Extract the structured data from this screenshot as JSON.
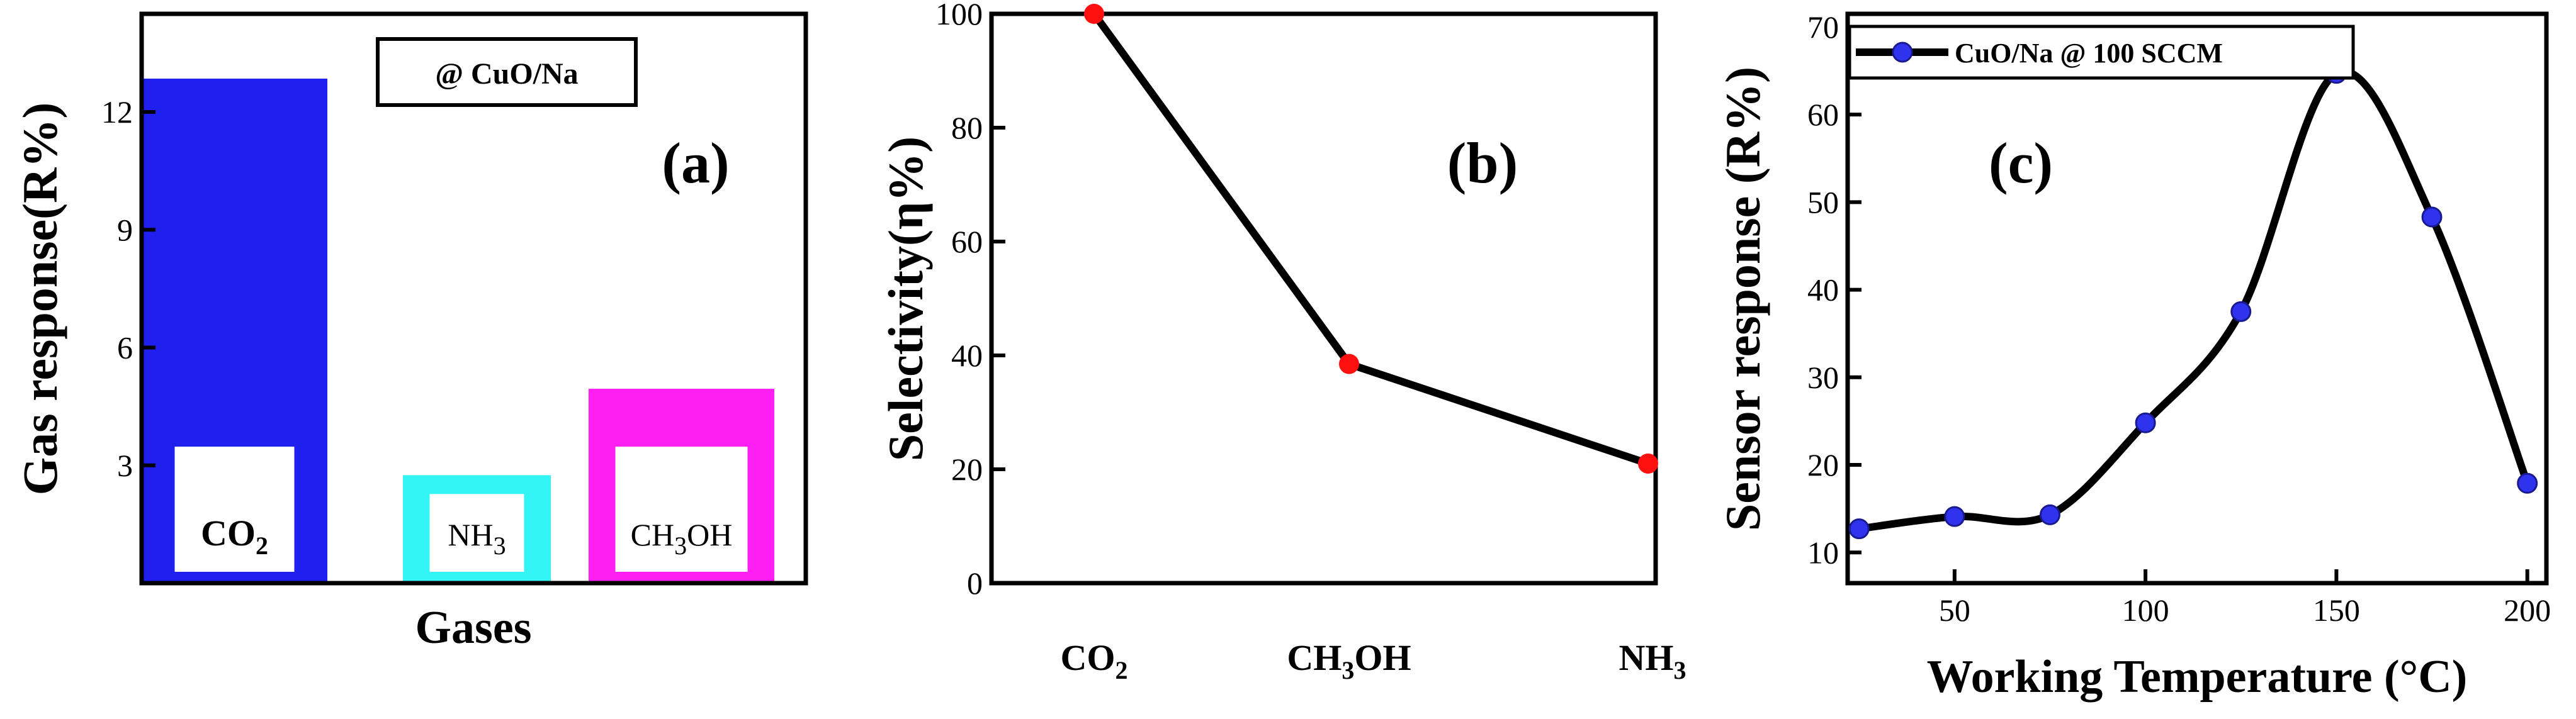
{
  "chart_data": [
    {
      "type": "bar",
      "panel_label": "(a)",
      "annotation": "@ CuO/Na",
      "xlabel": "Gases",
      "ylabel": "Gas response(R%)",
      "ylim": [
        0,
        14.5
      ],
      "yticks": [
        3,
        6,
        9,
        12
      ],
      "categories": [
        "CO2",
        "NH3",
        "CH3OH"
      ],
      "category_labels": [
        {
          "main": "CO",
          "sub": "2",
          "tail": ""
        },
        {
          "main": "NH",
          "sub": "3",
          "tail": ""
        },
        {
          "main": "CH",
          "sub": "3",
          "tail": "OH"
        }
      ],
      "values": [
        12.85,
        2.75,
        4.95
      ],
      "colors": [
        "#1f1ff0",
        "#33f5f5",
        "#ff1ff2"
      ]
    },
    {
      "type": "line",
      "panel_label": "(b)",
      "ylabel": "Selectivity(η%)",
      "ylim": [
        0,
        100
      ],
      "yticks": [
        0,
        20,
        40,
        60,
        80,
        100
      ],
      "categories": [
        "CO2",
        "CH3OH",
        "NH3"
      ],
      "category_labels": [
        {
          "main": "CO",
          "sub": "2",
          "tail": ""
        },
        {
          "main": "CH",
          "sub": "3",
          "tail": "OH"
        },
        {
          "main": "NH",
          "sub": "3",
          "tail": ""
        }
      ],
      "values": [
        100,
        38.5,
        21
      ],
      "line_color": "#000000",
      "marker_color": "#ff1010"
    },
    {
      "type": "line",
      "panel_label": "(c)",
      "xlabel": "Working Temperature (°C)",
      "ylabel": "Sensor response (R%)",
      "xlim": [
        22,
        205
      ],
      "ylim": [
        6.5,
        71.5
      ],
      "xticks": [
        50,
        100,
        150,
        200
      ],
      "yticks": [
        10,
        20,
        30,
        40,
        50,
        60,
        70
      ],
      "series": [
        {
          "name": "CuO/Na @ 100 SCCM",
          "x": [
            25,
            50,
            75,
            100,
            125,
            150,
            175,
            200
          ],
          "y": [
            12.7,
            14.1,
            14.3,
            24.8,
            37.5,
            64.7,
            48.3,
            17.9
          ]
        }
      ],
      "line_color": "#000000",
      "marker_color": "#2f33ee"
    }
  ]
}
